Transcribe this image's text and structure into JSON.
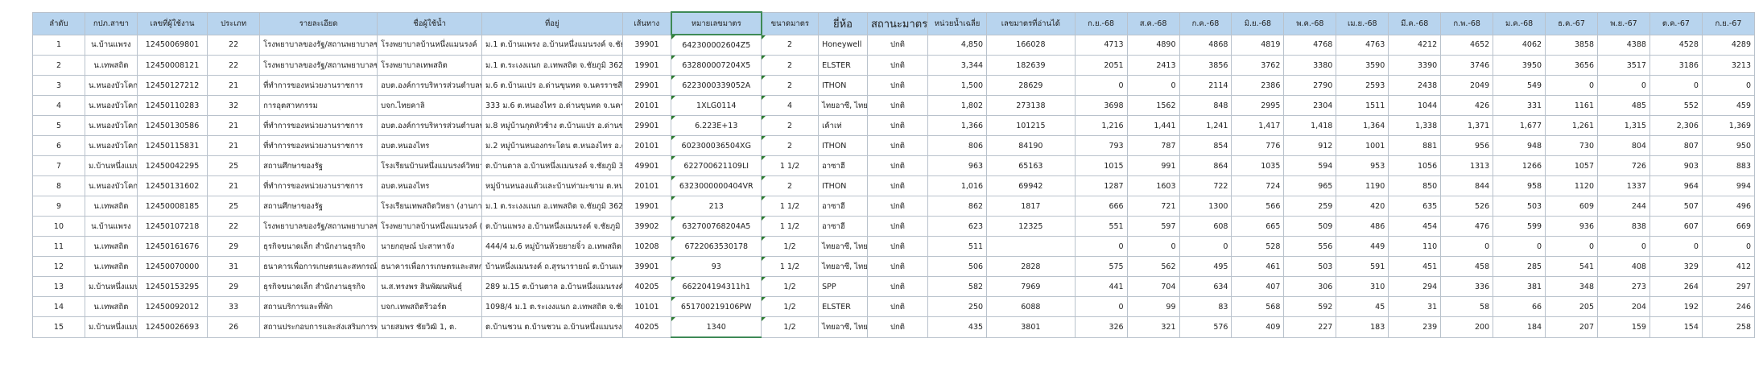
{
  "headers": [
    "ลำดับ",
    "กปภ.สาขา",
    "เลขที่ผู้ใช้งาน",
    "ประเภท",
    "รายละเอียด",
    "ชื่อผู้ใช้น้ำ",
    "ที่อยู่",
    "เส้นทาง",
    "หมายเลขมาตร",
    "ขนาดมาตร",
    "ยี่ห้อ",
    "สถานะมาตร",
    "หน่วยน้ำเฉลี่ย",
    "เลขมาตรที่อ่านได้",
    "ก.ย.-68",
    "ส.ค.-68",
    "ก.ค.-68",
    "มิ.ย.-68",
    "พ.ค.-68",
    "เม.ย.-68",
    "มี.ค.-68",
    "ก.พ.-68",
    "ม.ค.-68",
    "ธ.ค.-67",
    "พ.ย.-67",
    "ต.ค.-67",
    "ก.ย.-67"
  ],
  "rows": [
    {
      "cells": [
        "1",
        "น.บ้านแพรง",
        "12450069801",
        "22",
        "โรงพยาบาลของรัฐ/สถานพยาบาลของรัฐ",
        "โรงพยาบาลบ้านหนึ่งแมนรงค์",
        "ม.1 ต.บ้านแพรง อ.บ้านหนึ่งแมนรงค์ จ.ชัยภูมิ 36160",
        "39901",
        "642300002604Z5",
        "2",
        "Honeywell",
        "ปกติ",
        "4,850",
        "166028",
        "4713",
        "4890",
        "4868",
        "4819",
        "4768",
        "4763",
        "4212",
        "4652",
        "4062",
        "3858",
        "4388",
        "4528",
        "4289"
      ]
    },
    {
      "cells": [
        "2",
        "น.เทพสถิต",
        "12450008121",
        "22",
        "โรงพยาบาลของรัฐ/สถานพยาบาลของรัฐ",
        "โรงพยาบาลเทพสถิต",
        "ม.1 ต.ระเงงแนก อ.เทพสถิต จ.ชัยภูมิ 36230",
        "19901",
        "632800007204X5",
        "2",
        "ELSTER",
        "ปกติ",
        "3,344",
        "182639",
        "2051",
        "2413",
        "3856",
        "3762",
        "3380",
        "3590",
        "3390",
        "3746",
        "3950",
        "3656",
        "3517",
        "3186",
        "3213"
      ]
    },
    {
      "cells": [
        "3",
        "น.หนองบัวโคก",
        "12450127212",
        "21",
        "ที่ทำการของหน่วยงานราชการ",
        "อบต.องค์การบริหารส่วนตำบลบ้านแปร",
        "ม.6 ต.บ้านแปร อ.ด่านขุนทด จ.นครราชสีมา 36240",
        "29901",
        "6223000339052A",
        "2",
        "ITHON",
        "ปกติ",
        "1,500",
        "28629",
        "0",
        "0",
        "2114",
        "2386",
        "2790",
        "2593",
        "2438",
        "2049",
        "549",
        "0",
        "0",
        "0",
        "0"
      ]
    },
    {
      "cells": [
        "4",
        "น.หนองบัวโคก",
        "12450110283",
        "32",
        "การอุตสาหกรรม",
        "บจก.ไทยคาลิ",
        "333 ม.6 ต.หนองไทร อ.ด่านขุนทด จ.นครราชสีมา 36240",
        "20101",
        "1XLG0114",
        "4",
        "ไทยอาซี, ไทยอาซี",
        "ปกติ",
        "1,802",
        "273138",
        "3698",
        "1562",
        "848",
        "2995",
        "2304",
        "1511",
        "1044",
        "426",
        "331",
        "1161",
        "485",
        "552",
        "459"
      ]
    },
    {
      "cells": [
        "5",
        "น.หนองบัวโคก",
        "12450130586",
        "21",
        "ที่ทำการของหน่วยงานราชการ",
        "อบต.องค์การบริหารส่วนตำบลบ้านแปร",
        "ม.8 หมู่บ้านกุดหัวช้าง ต.บ้านแปร อ.ด่านขุนทด",
        "29901",
        "6.223E+13",
        "2",
        "เค้าเท่",
        "ปกติ",
        "1,366",
        "101215",
        "1,216",
        "1,441",
        "1,241",
        "1,417",
        "1,418",
        "1,364",
        "1,338",
        "1,371",
        "1,677",
        "1,261",
        "1,315",
        "2,306",
        "1,369"
      ]
    },
    {
      "cells": [
        "6",
        "น.หนองบัวโคก",
        "12450115831",
        "21",
        "ที่ทำการของหน่วยงานราชการ",
        "อบต.หนองไทร",
        "ม.2 หมู่บ้านหนองกระโดน ต.หนองไทร อ.ด่านขุนทด",
        "20101",
        "602300036504XG",
        "2",
        "ITHON",
        "ปกติ",
        "806",
        "84190",
        "793",
        "787",
        "854",
        "776",
        "912",
        "1001",
        "881",
        "956",
        "948",
        "730",
        "804",
        "807",
        "950"
      ]
    },
    {
      "cells": [
        "7",
        "ม.บ้านหนึ่งแมนรงค์",
        "12450042295",
        "25",
        "สถานศึกษาของรัฐ",
        "โรงเรียนบ้านหนึ่งแมนรงค์วิทยาคม (0020)",
        "ต.บ้านตาล อ.บ้านหนึ่งแมนรงค์ จ.ชัยภูมิ 36160",
        "49901",
        "622700621109LI",
        "1 1/2",
        "อาซาฮี",
        "ปกติ",
        "963",
        "65163",
        "1015",
        "991",
        "864",
        "1035",
        "594",
        "953",
        "1056",
        "1313",
        "1266",
        "1057",
        "726",
        "903",
        "883"
      ]
    },
    {
      "cells": [
        "8",
        "น.หนองบัวโคก",
        "12450131602",
        "21",
        "ที่ทำการของหน่วยงานราชการ",
        "อบต.หนองไทร",
        "หมู่บ้านหนองแต้วและบ้านท่ามะขาม ต.หนองไทร อ.ด่านขุนทด",
        "20101",
        "6323000000404VR",
        "2",
        "ITHON",
        "ปกติ",
        "1,016",
        "69942",
        "1287",
        "1603",
        "722",
        "724",
        "965",
        "1190",
        "850",
        "844",
        "958",
        "1120",
        "1337",
        "964",
        "994"
      ]
    },
    {
      "cells": [
        "9",
        "น.เทพสถิต",
        "12450008185",
        "25",
        "สถานศึกษาของรัฐ",
        "โรงเรียนเทพสถิตวิทยา (งานการเงิน)",
        "ม.1 ต.ระเงงแนก อ.เทพสถิต จ.ชัยภูมิ 36230",
        "19901",
        "213",
        "1 1/2",
        "อาซาฮี",
        "ปกติ",
        "862",
        "1817",
        "666",
        "721",
        "1300",
        "566",
        "259",
        "420",
        "635",
        "526",
        "503",
        "609",
        "244",
        "507",
        "496"
      ]
    },
    {
      "cells": [
        "10",
        "น.บ้านแพรง",
        "12450107218",
        "22",
        "โรงพยาบาลของรัฐ/สถานพยาบาลของรัฐ",
        "โรงพยาบาลบ้านหนึ่งแมนรงค์ (บ้านหัก)",
        "ต.บ้านแพรง อ.บ้านหนึ่งแมนรงค์ จ.ชัยภูมิ 36160",
        "39902",
        "632700768204A5",
        "1 1/2",
        "อาซาฮี",
        "ปกติ",
        "623",
        "12325",
        "551",
        "597",
        "608",
        "665",
        "509",
        "486",
        "454",
        "476",
        "599",
        "936",
        "838",
        "607",
        "669"
      ]
    },
    {
      "cells": [
        "11",
        "น.เทพสถิต",
        "12450161676",
        "29",
        "ธุรกิจขนาดเล็ก สำนักงานธุรกิจ",
        "นายกฤษณ์ ปะสาทาจัง",
        "444/4 ม.6 หมู่บ้านห้วยยายจิ๋ว อ.เทพสถิต จ.ชัยภูมิ",
        "10208",
        "6722063530178",
        "1/2",
        "ไทยอาซี, ไทยอาซี",
        "ปกติ",
        "511",
        "",
        "0",
        "0",
        "0",
        "528",
        "556",
        "449",
        "110",
        "0",
        "0",
        "0",
        "0",
        "0",
        "0"
      ]
    },
    {
      "cells": [
        "12",
        "น.เทพสถิต",
        "12450070000",
        "31",
        "ธนาคารเพื่อการเกษตรและสหกรณ์การเกษตร",
        "ธนาคารเพื่อการเกษตรและสหกรณ์การเกษตร",
        "บ้านหนึ่งแมนรงค์ ถ.สุรนารายณ์ ต.บ้านแพรง",
        "39901",
        "93",
        "1 1/2",
        "ไทยอาซี, ไทยอาซี",
        "ปกติ",
        "506",
        "2828",
        "575",
        "562",
        "495",
        "461",
        "503",
        "591",
        "451",
        "458",
        "285",
        "541",
        "408",
        "329",
        "412"
      ]
    },
    {
      "cells": [
        "13",
        "ม.บ้านหนึ่งแมนรงค์",
        "12450153295",
        "29",
        "ธุรกิจขนาดเล็ก สำนักงานธุรกิจ",
        "น.ส.ทรงพร สินพัฒนพันธุ์",
        "289 ม.15 ต.บ้านตาล อ.บ้านหนึ่งแมนรงค์ จ.ชัยภูมิ",
        "40205",
        "662204194311h1",
        "1/2",
        "SPP",
        "ปกติ",
        "582",
        "7969",
        "441",
        "704",
        "634",
        "407",
        "306",
        "310",
        "294",
        "336",
        "381",
        "348",
        "273",
        "264",
        "297"
      ]
    },
    {
      "cells": [
        "14",
        "น.เทพสถิต",
        "12450092012",
        "33",
        "สถานบริการและที่พัก",
        "บจก.เทพสถิตรีวอร์ต",
        "1098/4 ม.1 ต.ระเงงแนก อ.เทพสถิต จ.ชัยภูมิ 36230",
        "10101",
        "651700219106PW",
        "1/2",
        "ELSTER",
        "ปกติ",
        "250",
        "6088",
        "0",
        "99",
        "83",
        "568",
        "592",
        "45",
        "31",
        "58",
        "66",
        "205",
        "204",
        "192",
        "246"
      ]
    },
    {
      "cells": [
        "15",
        "ม.บ้านหนึ่งแมนรงค์",
        "12450026693",
        "26",
        "สถานประกอบการและส่งเสริมการท่องเที่ยว",
        "นายสมพร ชัยวิฒิ 1, ต.",
        "ต.บ้านชวน ต.บ้านชวน อ.บ้านหนึ่งแมนรงค์",
        "40205",
        "1340",
        "1/2",
        "ไทยอาซี, ไทยอาซี",
        "ปกติ",
        "435",
        "3801",
        "326",
        "321",
        "576",
        "409",
        "227",
        "183",
        "239",
        "200",
        "184",
        "207",
        "159",
        "154",
        "258"
      ]
    }
  ],
  "colors": {
    "header_fill": "#b8d4ee",
    "gridline": "#b9c2cc",
    "selection_border": "#3e8a56",
    "comment_marker": "#2e7d32"
  }
}
